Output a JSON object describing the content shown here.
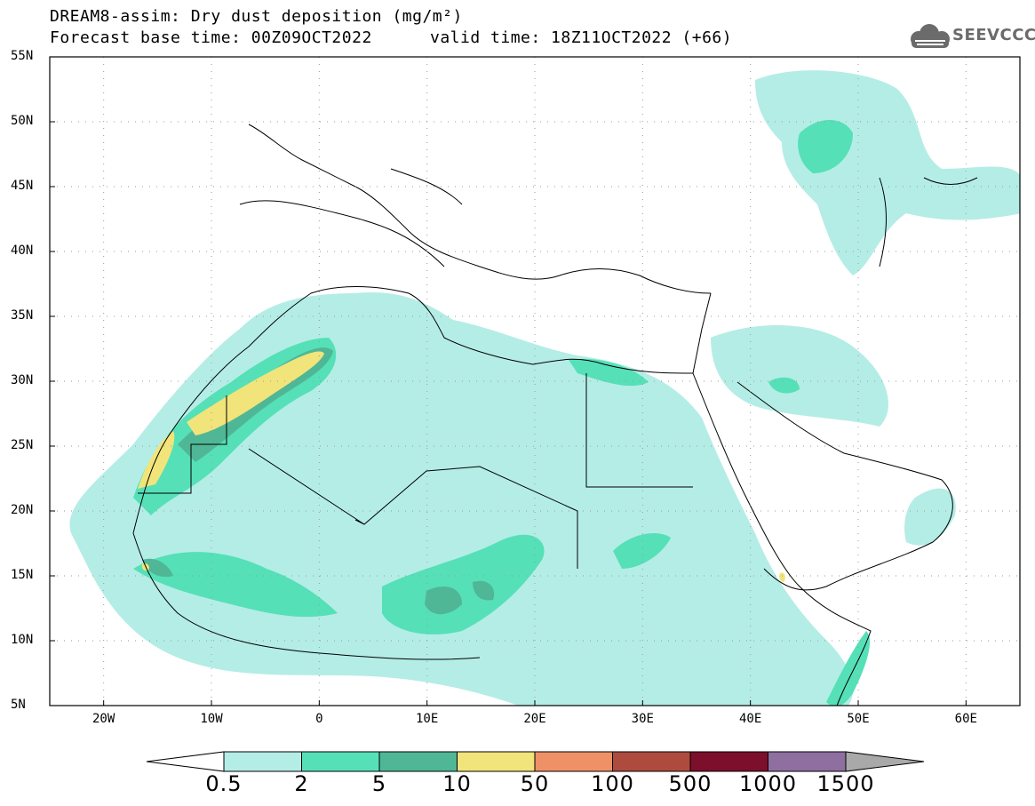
{
  "title": {
    "line1": "DREAM8-assim: Dry dust deposition (mg/m²)",
    "line2": "Forecast base time: 00Z09OCT2022",
    "valid": "valid time: 18Z11OCT2022 (+66)"
  },
  "logo": {
    "text": "SEEVCCC",
    "icon": "cloud-logo-icon"
  },
  "map": {
    "lon_range": [
      -25,
      65
    ],
    "lat_range": [
      5,
      55
    ],
    "lat_ticks": [
      "55N",
      "50N",
      "45N",
      "40N",
      "35N",
      "30N",
      "25N",
      "20N",
      "15N",
      "10N",
      "5N"
    ],
    "lon_ticks": [
      "20W",
      "10W",
      "0",
      "10E",
      "20E",
      "30E",
      "40E",
      "50E",
      "60E"
    ],
    "grid": "dotted"
  },
  "colorbar": {
    "labels": [
      "0.5",
      "2",
      "5",
      "10",
      "50",
      "100",
      "500",
      "1000",
      "1500"
    ],
    "colors": [
      "#b4ede6",
      "#55e0b8",
      "#4fb796",
      "#f1e47a",
      "#ef9166",
      "#ad4b3e",
      "#7c0f2b",
      "#8e6fa0"
    ],
    "under_color": "#ffffff",
    "over_color": "#a9a9a9"
  },
  "colors": {
    "level1": "#b4ede6",
    "level2": "#55e0b8",
    "level3": "#4fb796",
    "level4": "#f1e47a"
  }
}
